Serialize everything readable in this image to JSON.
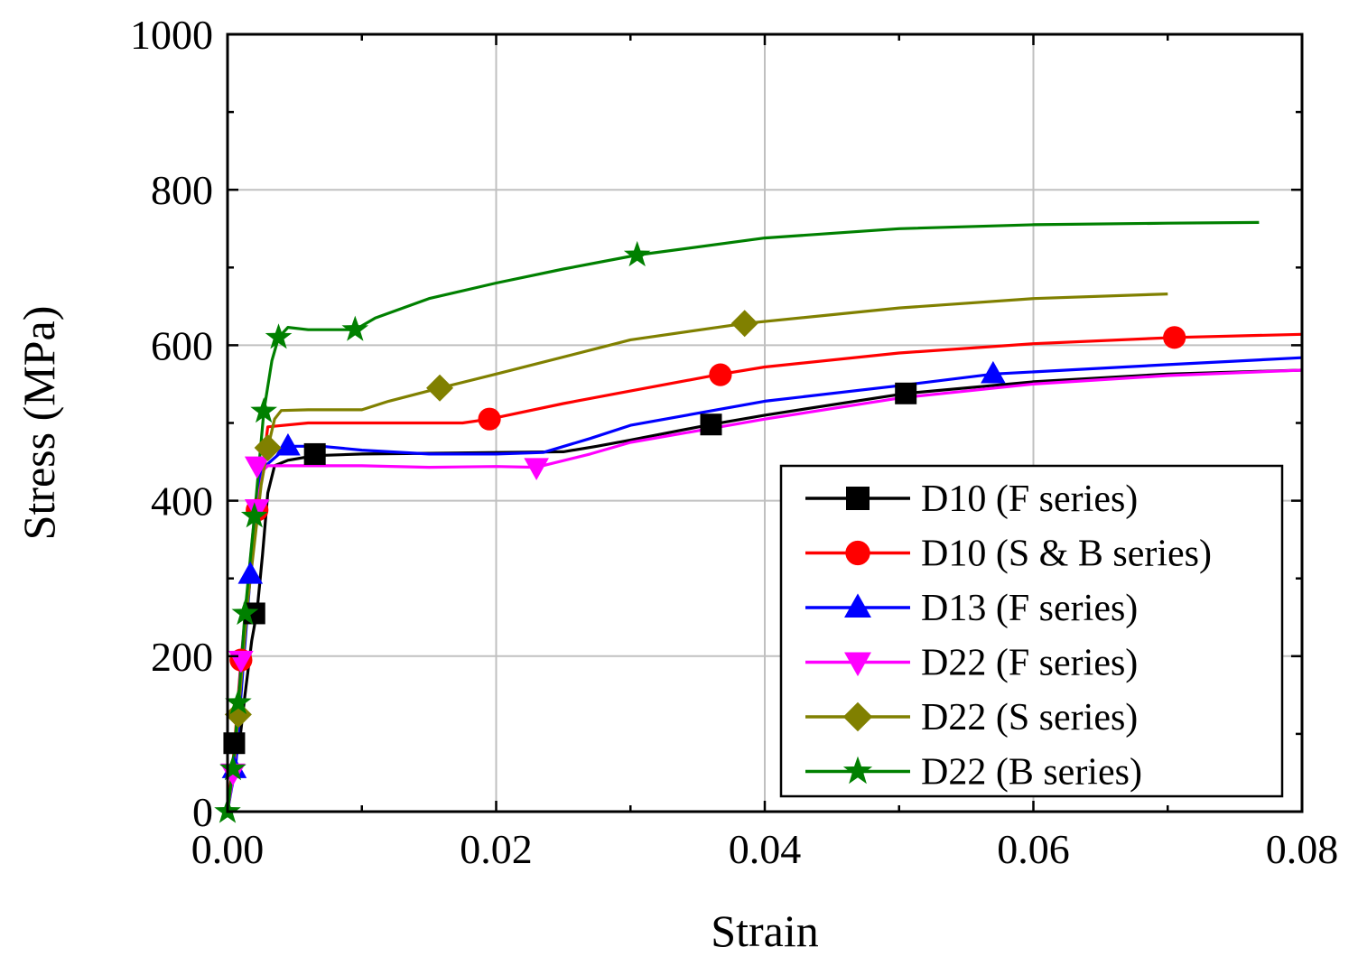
{
  "chart_data": {
    "type": "line",
    "title": "",
    "xlabel": "Strain",
    "ylabel": "Stress (MPa)",
    "xlim": [
      0,
      0.08
    ],
    "ylim": [
      0,
      1000
    ],
    "xticks": [
      "0.00",
      "0.02",
      "0.04",
      "0.06",
      "0.08"
    ],
    "yticks": [
      "0",
      "200",
      "400",
      "600",
      "800",
      "1000"
    ],
    "grid": true,
    "legend_position": "bottom-right",
    "series": [
      {
        "name": "D10 (F series)",
        "color": "#000000",
        "marker": "square",
        "points": [
          [
            0,
            0
          ],
          [
            0.0005,
            60
          ],
          [
            0.0009,
            90
          ],
          [
            0.0013,
            150
          ],
          [
            0.0018,
            220
          ],
          [
            0.0022,
            258
          ],
          [
            0.0026,
            330
          ],
          [
            0.003,
            410
          ],
          [
            0.0035,
            445
          ],
          [
            0.0045,
            452
          ],
          [
            0.0065,
            458
          ],
          [
            0.01,
            460
          ],
          [
            0.015,
            461
          ],
          [
            0.02,
            462
          ],
          [
            0.025,
            463
          ],
          [
            0.0275,
            470
          ],
          [
            0.03,
            478
          ],
          [
            0.036,
            498
          ],
          [
            0.04,
            510
          ],
          [
            0.0505,
            538
          ],
          [
            0.06,
            553
          ],
          [
            0.07,
            563
          ],
          [
            0.08,
            568
          ]
        ],
        "markers": [
          [
            0.0005,
            88
          ],
          [
            0.002,
            255
          ],
          [
            0.0065,
            460
          ],
          [
            0.036,
            498
          ],
          [
            0.0505,
            538
          ]
        ]
      },
      {
        "name": "D10 (S & B series)",
        "color": "#ff0000",
        "marker": "circle",
        "points": [
          [
            0,
            0
          ],
          [
            0.0005,
            80
          ],
          [
            0.001,
            195
          ],
          [
            0.0018,
            320
          ],
          [
            0.0022,
            388
          ],
          [
            0.003,
            495
          ],
          [
            0.006,
            500
          ],
          [
            0.01,
            500
          ],
          [
            0.015,
            500
          ],
          [
            0.0175,
            500
          ],
          [
            0.0195,
            505
          ],
          [
            0.025,
            525
          ],
          [
            0.029,
            538
          ],
          [
            0.0365,
            562
          ],
          [
            0.04,
            572
          ],
          [
            0.05,
            590
          ],
          [
            0.06,
            602
          ],
          [
            0.0705,
            610
          ],
          [
            0.08,
            614
          ]
        ],
        "markers": [
          [
            0.001,
            195
          ],
          [
            0.0022,
            388
          ],
          [
            0.0195,
            505
          ],
          [
            0.0367,
            562
          ],
          [
            0.0705,
            610
          ]
        ]
      },
      {
        "name": "D13 (F series)",
        "color": "#0000ff",
        "marker": "triangle-up",
        "points": [
          [
            0,
            0
          ],
          [
            0.0003,
            30
          ],
          [
            0.0006,
            55
          ],
          [
            0.001,
            150
          ],
          [
            0.0017,
            305
          ],
          [
            0.0025,
            440
          ],
          [
            0.0045,
            470
          ],
          [
            0.007,
            470
          ],
          [
            0.01,
            465
          ],
          [
            0.015,
            460
          ],
          [
            0.02,
            460
          ],
          [
            0.0235,
            462
          ],
          [
            0.027,
            480
          ],
          [
            0.03,
            497
          ],
          [
            0.04,
            528
          ],
          [
            0.05,
            548
          ],
          [
            0.057,
            563
          ],
          [
            0.07,
            575
          ],
          [
            0.08,
            584
          ]
        ],
        "markers": [
          [
            0.0005,
            55
          ],
          [
            0.0017,
            305
          ],
          [
            0.0045,
            470
          ],
          [
            0.057,
            563
          ]
        ]
      },
      {
        "name": "D22 (F series)",
        "color": "#ff00ff",
        "marker": "triangle-down",
        "points": [
          [
            0,
            0
          ],
          [
            0.0005,
            55
          ],
          [
            0.001,
            195
          ],
          [
            0.002,
            380
          ],
          [
            0.0027,
            440
          ],
          [
            0.003,
            445
          ],
          [
            0.006,
            445
          ],
          [
            0.01,
            445
          ],
          [
            0.015,
            443
          ],
          [
            0.02,
            444
          ],
          [
            0.023,
            443
          ],
          [
            0.027,
            460
          ],
          [
            0.03,
            475
          ],
          [
            0.04,
            505
          ],
          [
            0.05,
            532
          ],
          [
            0.06,
            550
          ],
          [
            0.07,
            561
          ],
          [
            0.08,
            568
          ]
        ],
        "markers": [
          [
            0.0004,
            50
          ],
          [
            0.001,
            195
          ],
          [
            0.0022,
            390
          ],
          [
            0.0022,
            445
          ],
          [
            0.023,
            443
          ]
        ]
      },
      {
        "name": "D22 (S series)",
        "color": "#808000",
        "marker": "diamond",
        "points": [
          [
            0,
            0
          ],
          [
            0.0005,
            65
          ],
          [
            0.0008,
            125
          ],
          [
            0.0015,
            270
          ],
          [
            0.0025,
            420
          ],
          [
            0.003,
            468
          ],
          [
            0.0035,
            505
          ],
          [
            0.004,
            516
          ],
          [
            0.006,
            517
          ],
          [
            0.01,
            517
          ],
          [
            0.012,
            528
          ],
          [
            0.0158,
            545
          ],
          [
            0.02,
            563
          ],
          [
            0.028,
            598
          ],
          [
            0.03,
            607
          ],
          [
            0.0385,
            628
          ],
          [
            0.05,
            648
          ],
          [
            0.06,
            660
          ],
          [
            0.07,
            666
          ]
        ],
        "markers": [
          [
            0.0008,
            125
          ],
          [
            0.003,
            468
          ],
          [
            0.0158,
            545
          ],
          [
            0.0385,
            628
          ]
        ]
      },
      {
        "name": "D22 (B series)",
        "color": "#008000",
        "marker": "star",
        "points": [
          [
            0,
            0
          ],
          [
            0.0004,
            55
          ],
          [
            0.0008,
            140
          ],
          [
            0.0013,
            255
          ],
          [
            0.002,
            380
          ],
          [
            0.0027,
            515
          ],
          [
            0.0033,
            580
          ],
          [
            0.0038,
            610
          ],
          [
            0.0045,
            623
          ],
          [
            0.006,
            620
          ],
          [
            0.0095,
            620
          ],
          [
            0.011,
            635
          ],
          [
            0.015,
            660
          ],
          [
            0.02,
            680
          ],
          [
            0.025,
            698
          ],
          [
            0.0305,
            716
          ],
          [
            0.04,
            738
          ],
          [
            0.05,
            750
          ],
          [
            0.06,
            755
          ],
          [
            0.07,
            757
          ],
          [
            0.0768,
            758
          ]
        ],
        "markers": [
          [
            0,
            0
          ],
          [
            0.0004,
            55
          ],
          [
            0.0008,
            140
          ],
          [
            0.0013,
            255
          ],
          [
            0.002,
            380
          ],
          [
            0.0027,
            515
          ],
          [
            0.0038,
            610
          ],
          [
            0.0095,
            620
          ],
          [
            0.0305,
            716
          ]
        ]
      }
    ]
  }
}
